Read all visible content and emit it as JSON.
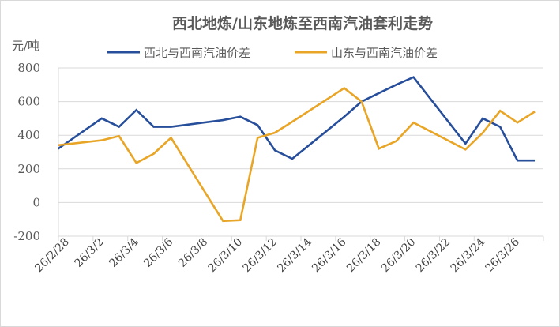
{
  "chart_data": {
    "type": "line",
    "title": "西北地炼/山东地炼至西南汽油套利走势",
    "ylabel": "元/吨",
    "xlabel": "",
    "ylim": [
      -200,
      800
    ],
    "yticks": [
      -200,
      0,
      200,
      400,
      600,
      800
    ],
    "grid": true,
    "legend_position": "top",
    "x_axis_range": [
      "2026-02-28",
      "2026-03-28"
    ],
    "xtick_labels": [
      "26/2/28",
      "26/3/2",
      "26/3/4",
      "26/3/6",
      "26/3/8",
      "26/3/10",
      "26/3/12",
      "26/3/14",
      "26/3/16",
      "26/3/18",
      "26/3/20",
      "26/3/22",
      "26/3/24",
      "26/3/26"
    ],
    "x": [
      "2026-02-27",
      "2026-03-02",
      "2026-03-03",
      "2026-03-04",
      "2026-03-05",
      "2026-03-06",
      "2026-03-09",
      "2026-03-10",
      "2026-03-11",
      "2026-03-12",
      "2026-03-13",
      "2026-03-16",
      "2026-03-17",
      "2026-03-18",
      "2026-03-19",
      "2026-03-20",
      "2026-03-23",
      "2026-03-24",
      "2026-03-25",
      "2026-03-26",
      "2026-03-27"
    ],
    "series": [
      {
        "name": "西北与西南汽油价差",
        "color": "#264E9A",
        "values": [
          285,
          500,
          450,
          550,
          450,
          450,
          490,
          510,
          460,
          310,
          260,
          510,
          600,
          650,
          700,
          745,
          350,
          500,
          450,
          250,
          250
        ]
      },
      {
        "name": "山东与西南汽油价差",
        "color": "#E8A526",
        "values": [
          335,
          370,
          395,
          235,
          290,
          385,
          -110,
          -105,
          385,
          415,
          480,
          680,
          600,
          320,
          365,
          475,
          315,
          415,
          545,
          475,
          540
        ]
      }
    ]
  }
}
